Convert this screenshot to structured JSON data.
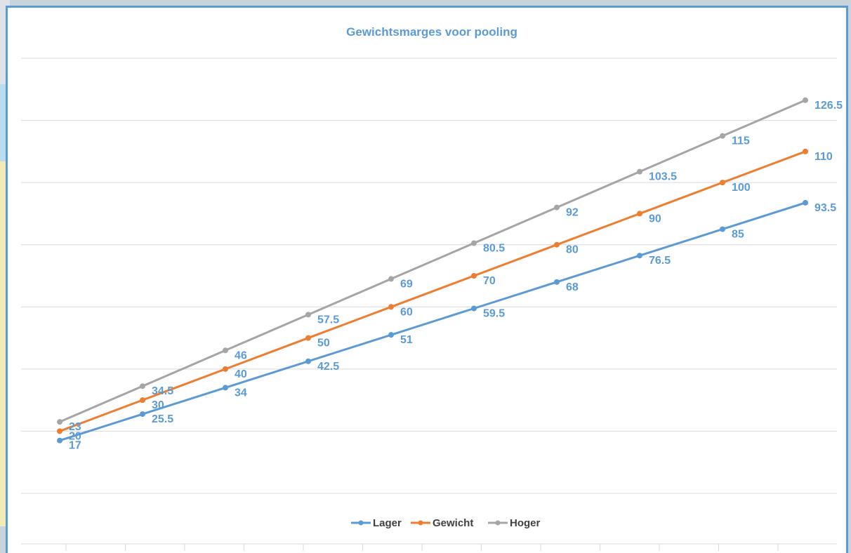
{
  "chart_data": {
    "type": "line",
    "title": "Gewichtsmarges voor pooling",
    "xlabel": "",
    "ylabel": "",
    "grid": true,
    "legend_position": "bottom",
    "ylim": [
      0,
      140
    ],
    "series": [
      {
        "name": "Lager",
        "color": "#5b9bd5",
        "values": [
          17,
          25.5,
          34,
          42.5,
          51,
          59.5,
          68,
          76.5,
          85,
          93.5
        ]
      },
      {
        "name": "Gewicht",
        "color": "#ed7d31",
        "values": [
          20,
          30,
          40,
          50,
          60,
          70,
          80,
          90,
          100,
          110
        ]
      },
      {
        "name": "Hoger",
        "color": "#a5a5a5",
        "values": [
          23,
          34.5,
          46,
          57.5,
          69,
          80.5,
          92,
          103.5,
          115,
          126.5
        ]
      }
    ]
  }
}
